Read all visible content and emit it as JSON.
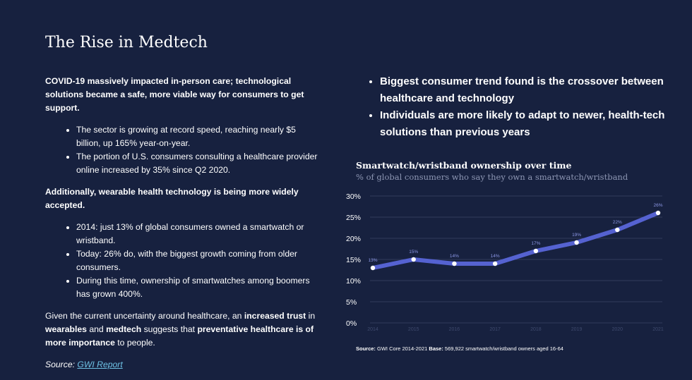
{
  "title": "The Rise in Medtech",
  "left": {
    "intro": "COVID-19 massively impacted in-person care; technological solutions became a safe, more viable way for consumers to get support.",
    "bullets1": [
      "The sector is growing at record speed, reaching nearly $5 billion, up 165% year-on-year.",
      "The portion of U.S. consumers consulting a healthcare provider online increased by 35% since Q2 2020."
    ],
    "additional": "Additionally, wearable health technology is being more widely accepted.",
    "bullets2": [
      "2014: just 13% of global consumers owned a smartwatch or wristband.",
      "Today: 26% do, with the biggest growth coming from older consumers.",
      "During this time, ownership of smartwatches among boomers has grown 400%."
    ],
    "conclusion": {
      "t1": "Given the current uncertainty around healthcare, an ",
      "b1": "increased trust",
      "t2": " in ",
      "b2": "wearables",
      "t3": " and ",
      "b3": "medtech",
      "t4": " suggests that ",
      "b4": "preventative healthcare is of more importance",
      "t5": " to people."
    },
    "source_label": "Source: ",
    "source_link": "GWI Report"
  },
  "right": {
    "bullets": [
      "Biggest consumer trend found is the crossover between healthcare and technology",
      "Individuals are more likely to adapt to newer, health-tech solutions than previous years"
    ]
  },
  "footnote": {
    "source_label": "Source:",
    "source_text": " GWI Core 2014-2021 ",
    "base_label": "Base:",
    "base_text": " 569,922 smartwatch/wristband owners aged 16-64"
  },
  "colors": {
    "background": "#17213f",
    "line": "#5562d1",
    "marker": "#ffffff",
    "link": "#6ec1e4"
  },
  "chart_data": {
    "type": "line",
    "title": "Smartwatch/wristband ownership over time",
    "subtitle": "% of global consumers who say they own a smartwatch/wristband",
    "categories": [
      "2014",
      "2015",
      "2016",
      "2017",
      "2018",
      "2019",
      "2020",
      "2021"
    ],
    "values": [
      13,
      15,
      14,
      14,
      17,
      19,
      22,
      26
    ],
    "data_labels": [
      "13%",
      "15%",
      "14%",
      "14%",
      "17%",
      "19%",
      "22%",
      "26%"
    ],
    "y_ticks": [
      "0%",
      "5%",
      "10%",
      "15%",
      "20%",
      "25%",
      "30%"
    ],
    "ylim": [
      0,
      30
    ],
    "grid": "horizontal",
    "xlabel": "",
    "ylabel": ""
  }
}
